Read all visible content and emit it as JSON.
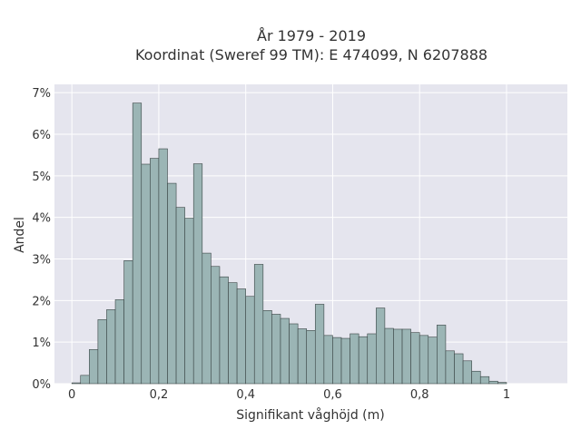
{
  "chart_data": {
    "type": "bar",
    "title_lines": [
      "År 1979 - 2019",
      "Koordinat (Sweref 99 TM): E 474099, N 6207888"
    ],
    "xlabel": "Signifikant våghöjd (m)",
    "ylabel": "Andel",
    "xlim": [
      -0.04,
      1.14
    ],
    "ylim": [
      0,
      7.2
    ],
    "x_ticks": [
      {
        "value": 0,
        "label": "0"
      },
      {
        "value": 0.2,
        "label": "0,2"
      },
      {
        "value": 0.4,
        "label": "0,4"
      },
      {
        "value": 0.6,
        "label": "0,6"
      },
      {
        "value": 0.8,
        "label": "0,8"
      },
      {
        "value": 1,
        "label": "1"
      }
    ],
    "y_ticks": [
      {
        "value": 0,
        "label": "0%"
      },
      {
        "value": 1,
        "label": "1%"
      },
      {
        "value": 2,
        "label": "2%"
      },
      {
        "value": 3,
        "label": "3%"
      },
      {
        "value": 4,
        "label": "4%"
      },
      {
        "value": 5,
        "label": "5%"
      },
      {
        "value": 6,
        "label": "6%"
      },
      {
        "value": 7,
        "label": "7%"
      }
    ],
    "grid": true,
    "bin_width": 0.02,
    "bin_start": 0.01,
    "values": [
      0.02,
      0.2,
      0.82,
      1.54,
      1.78,
      2.02,
      2.96,
      6.75,
      5.28,
      5.42,
      5.65,
      4.82,
      4.24,
      3.98,
      5.29,
      3.14,
      2.82,
      2.57,
      2.43,
      2.28,
      2.1,
      2.87,
      1.76,
      1.67,
      1.57,
      1.44,
      1.32,
      1.28,
      1.91,
      1.16,
      1.11,
      1.09,
      1.2,
      1.13,
      1.2,
      1.82,
      1.33,
      1.31,
      1.31,
      1.23,
      1.16,
      1.12,
      1.41,
      0.79,
      0.72,
      0.55,
      0.3,
      0.17,
      0.06,
      0.03
    ],
    "colors": {
      "bar_fill": "#9bb5b5",
      "bar_stroke": "#3a4545",
      "plot_background": "#e5e5ee",
      "gridline": "#ffffff"
    }
  }
}
